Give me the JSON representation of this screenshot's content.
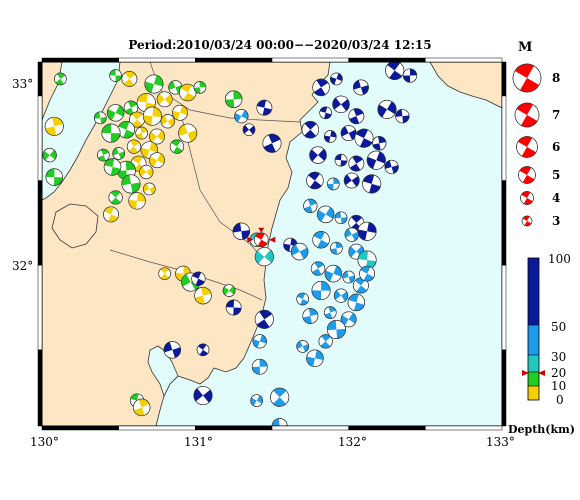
{
  "title": "Period:2010/03/24 00:00−−2020/03/24 12:15",
  "axes": {
    "lon_ticks": [
      "130°",
      "131°",
      "132°",
      "133°"
    ],
    "lat_ticks": [
      "33°",
      "32°"
    ]
  },
  "magnitude_legend": {
    "title": "M",
    "labels": [
      "8",
      "7",
      "6",
      "5",
      "4",
      "3"
    ]
  },
  "depth_colorbar": {
    "title": "Depth(km)",
    "labels": [
      "100",
      "50",
      "30",
      "20",
      "10",
      "0"
    ],
    "colors": {
      "shallow_0_10": "#f5d000",
      "10_20": "#22cc22",
      "20_30": "#22c8c0",
      "30_50": "#1e9bea",
      "deep_50_100": "#0a1a9a"
    },
    "marker_depth_km": 20
  },
  "colors": {
    "land": "#fde6c4",
    "sea": "#e2fbfb",
    "mainshock": "#ff0000",
    "frame_dark": "#000000"
  },
  "map_data": {
    "lon_range": [
      130,
      133
    ],
    "lat_range": [
      31.05,
      33.2
    ],
    "mainshock": {
      "lon": 131.43,
      "lat": 32.15,
      "depth_km": 20
    },
    "events": [
      {
        "lon": 130.48,
        "lat": 33.12,
        "d": 10
      },
      {
        "lon": 130.57,
        "lat": 33.1,
        "d": 5
      },
      {
        "lon": 130.73,
        "lat": 33.07,
        "d": 10
      },
      {
        "lon": 130.87,
        "lat": 33.05,
        "d": 10
      },
      {
        "lon": 130.95,
        "lat": 33.02,
        "d": 5
      },
      {
        "lon": 131.03,
        "lat": 33.05,
        "d": 10
      },
      {
        "lon": 130.8,
        "lat": 32.98,
        "d": 5
      },
      {
        "lon": 130.68,
        "lat": 32.96,
        "d": 5
      },
      {
        "lon": 130.58,
        "lat": 32.93,
        "d": 10
      },
      {
        "lon": 130.48,
        "lat": 32.9,
        "d": 10
      },
      {
        "lon": 130.38,
        "lat": 32.87,
        "d": 10
      },
      {
        "lon": 130.62,
        "lat": 32.86,
        "d": 5
      },
      {
        "lon": 130.72,
        "lat": 32.88,
        "d": 5
      },
      {
        "lon": 130.82,
        "lat": 32.85,
        "d": 5
      },
      {
        "lon": 130.55,
        "lat": 32.8,
        "d": 10
      },
      {
        "lon": 130.65,
        "lat": 32.78,
        "d": 5
      },
      {
        "lon": 130.75,
        "lat": 32.76,
        "d": 5
      },
      {
        "lon": 130.45,
        "lat": 32.78,
        "d": 10
      },
      {
        "lon": 130.6,
        "lat": 32.7,
        "d": 5
      },
      {
        "lon": 130.7,
        "lat": 32.68,
        "d": 5
      },
      {
        "lon": 130.5,
        "lat": 32.66,
        "d": 10
      },
      {
        "lon": 130.63,
        "lat": 32.6,
        "d": 5
      },
      {
        "lon": 130.55,
        "lat": 32.56,
        "d": 10
      },
      {
        "lon": 130.68,
        "lat": 32.55,
        "d": 5
      },
      {
        "lon": 130.46,
        "lat": 32.58,
        "d": 10
      },
      {
        "lon": 130.4,
        "lat": 32.65,
        "d": 10
      },
      {
        "lon": 130.75,
        "lat": 32.62,
        "d": 5
      },
      {
        "lon": 130.58,
        "lat": 32.48,
        "d": 10
      },
      {
        "lon": 130.48,
        "lat": 32.4,
        "d": 10
      },
      {
        "lon": 130.62,
        "lat": 32.38,
        "d": 5
      },
      {
        "lon": 130.7,
        "lat": 32.45,
        "d": 5
      },
      {
        "lon": 130.45,
        "lat": 32.3,
        "d": 5
      },
      {
        "lon": 130.08,
        "lat": 32.82,
        "d": 5
      },
      {
        "lon": 130.05,
        "lat": 32.65,
        "d": 10
      },
      {
        "lon": 130.08,
        "lat": 32.52,
        "d": 10
      },
      {
        "lon": 130.12,
        "lat": 33.1,
        "d": 10
      },
      {
        "lon": 130.9,
        "lat": 32.9,
        "d": 5
      },
      {
        "lon": 130.95,
        "lat": 32.78,
        "d": 5
      },
      {
        "lon": 130.88,
        "lat": 32.7,
        "d": 10
      },
      {
        "lon": 131.25,
        "lat": 32.98,
        "d": 10
      },
      {
        "lon": 131.35,
        "lat": 32.8,
        "d": 50
      },
      {
        "lon": 131.45,
        "lat": 32.93,
        "d": 50
      },
      {
        "lon": 131.5,
        "lat": 32.72,
        "d": 50
      },
      {
        "lon": 131.3,
        "lat": 32.88,
        "d": 30
      },
      {
        "lon": 131.3,
        "lat": 32.2,
        "d": 50
      },
      {
        "lon": 130.8,
        "lat": 31.95,
        "d": 5
      },
      {
        "lon": 130.92,
        "lat": 31.95,
        "d": 5
      },
      {
        "lon": 130.97,
        "lat": 31.9,
        "d": 10
      },
      {
        "lon": 131.02,
        "lat": 31.92,
        "d": 50
      },
      {
        "lon": 131.05,
        "lat": 31.82,
        "d": 5
      },
      {
        "lon": 131.22,
        "lat": 31.85,
        "d": 10
      },
      {
        "lon": 131.25,
        "lat": 31.75,
        "d": 50
      },
      {
        "lon": 131.45,
        "lat": 31.68,
        "d": 100
      },
      {
        "lon": 131.42,
        "lat": 31.55,
        "d": 30
      },
      {
        "lon": 130.85,
        "lat": 31.5,
        "d": 50
      },
      {
        "lon": 131.05,
        "lat": 31.5,
        "d": 50
      },
      {
        "lon": 131.42,
        "lat": 31.4,
        "d": 30
      },
      {
        "lon": 131.05,
        "lat": 31.23,
        "d": 50
      },
      {
        "lon": 130.62,
        "lat": 31.2,
        "d": 10
      },
      {
        "lon": 130.65,
        "lat": 31.16,
        "d": 5
      },
      {
        "lon": 131.4,
        "lat": 31.2,
        "d": 30
      },
      {
        "lon": 131.55,
        "lat": 31.05,
        "d": 30
      },
      {
        "lon": 131.55,
        "lat": 31.22,
        "d": 30
      },
      {
        "lon": 131.62,
        "lat": 32.12,
        "d": 50
      },
      {
        "lon": 131.68,
        "lat": 32.08,
        "d": 30
      },
      {
        "lon": 131.7,
        "lat": 31.8,
        "d": 30
      },
      {
        "lon": 131.75,
        "lat": 31.7,
        "d": 30
      },
      {
        "lon": 131.45,
        "lat": 32.05,
        "d": 20
      },
      {
        "lon": 131.4,
        "lat": 32.15,
        "d": 20
      },
      {
        "lon": 131.82,
        "lat": 33.05,
        "d": 50
      },
      {
        "lon": 131.92,
        "lat": 33.1,
        "d": 50
      },
      {
        "lon": 132.08,
        "lat": 33.05,
        "d": 50
      },
      {
        "lon": 132.3,
        "lat": 33.15,
        "d": 50
      },
      {
        "lon": 132.4,
        "lat": 33.12,
        "d": 50
      },
      {
        "lon": 131.95,
        "lat": 32.95,
        "d": 50
      },
      {
        "lon": 131.85,
        "lat": 32.9,
        "d": 50
      },
      {
        "lon": 132.05,
        "lat": 32.88,
        "d": 50
      },
      {
        "lon": 132.25,
        "lat": 32.92,
        "d": 50
      },
      {
        "lon": 132.35,
        "lat": 32.88,
        "d": 50
      },
      {
        "lon": 131.75,
        "lat": 32.8,
        "d": 50
      },
      {
        "lon": 131.88,
        "lat": 32.76,
        "d": 50
      },
      {
        "lon": 132.0,
        "lat": 32.78,
        "d": 50
      },
      {
        "lon": 132.1,
        "lat": 32.75,
        "d": 50
      },
      {
        "lon": 132.2,
        "lat": 32.72,
        "d": 50
      },
      {
        "lon": 131.8,
        "lat": 32.65,
        "d": 50
      },
      {
        "lon": 131.95,
        "lat": 32.62,
        "d": 50
      },
      {
        "lon": 132.05,
        "lat": 32.6,
        "d": 50
      },
      {
        "lon": 132.18,
        "lat": 32.62,
        "d": 50
      },
      {
        "lon": 132.28,
        "lat": 32.58,
        "d": 50
      },
      {
        "lon": 131.78,
        "lat": 32.5,
        "d": 50
      },
      {
        "lon": 131.9,
        "lat": 32.48,
        "d": 30
      },
      {
        "lon": 132.02,
        "lat": 32.5,
        "d": 50
      },
      {
        "lon": 132.15,
        "lat": 32.48,
        "d": 50
      },
      {
        "lon": 131.75,
        "lat": 32.35,
        "d": 30
      },
      {
        "lon": 131.85,
        "lat": 32.3,
        "d": 30
      },
      {
        "lon": 131.95,
        "lat": 32.28,
        "d": 30
      },
      {
        "lon": 132.05,
        "lat": 32.25,
        "d": 50
      },
      {
        "lon": 132.12,
        "lat": 32.2,
        "d": 50
      },
      {
        "lon": 132.02,
        "lat": 32.18,
        "d": 30
      },
      {
        "lon": 131.82,
        "lat": 32.15,
        "d": 30
      },
      {
        "lon": 131.92,
        "lat": 32.1,
        "d": 30
      },
      {
        "lon": 132.05,
        "lat": 32.08,
        "d": 30
      },
      {
        "lon": 132.12,
        "lat": 32.03,
        "d": 20
      },
      {
        "lon": 131.8,
        "lat": 31.98,
        "d": 30
      },
      {
        "lon": 131.9,
        "lat": 31.95,
        "d": 30
      },
      {
        "lon": 132.0,
        "lat": 31.93,
        "d": 30
      },
      {
        "lon": 132.08,
        "lat": 31.88,
        "d": 30
      },
      {
        "lon": 131.82,
        "lat": 31.85,
        "d": 30
      },
      {
        "lon": 131.95,
        "lat": 31.82,
        "d": 30
      },
      {
        "lon": 132.05,
        "lat": 31.78,
        "d": 30
      },
      {
        "lon": 131.88,
        "lat": 31.72,
        "d": 30
      },
      {
        "lon": 132.0,
        "lat": 31.68,
        "d": 30
      },
      {
        "lon": 131.92,
        "lat": 31.62,
        "d": 30
      },
      {
        "lon": 131.85,
        "lat": 31.55,
        "d": 30
      },
      {
        "lon": 131.78,
        "lat": 31.45,
        "d": 30
      },
      {
        "lon": 131.7,
        "lat": 31.52,
        "d": 30
      },
      {
        "lon": 132.12,
        "lat": 31.95,
        "d": 30
      }
    ]
  }
}
